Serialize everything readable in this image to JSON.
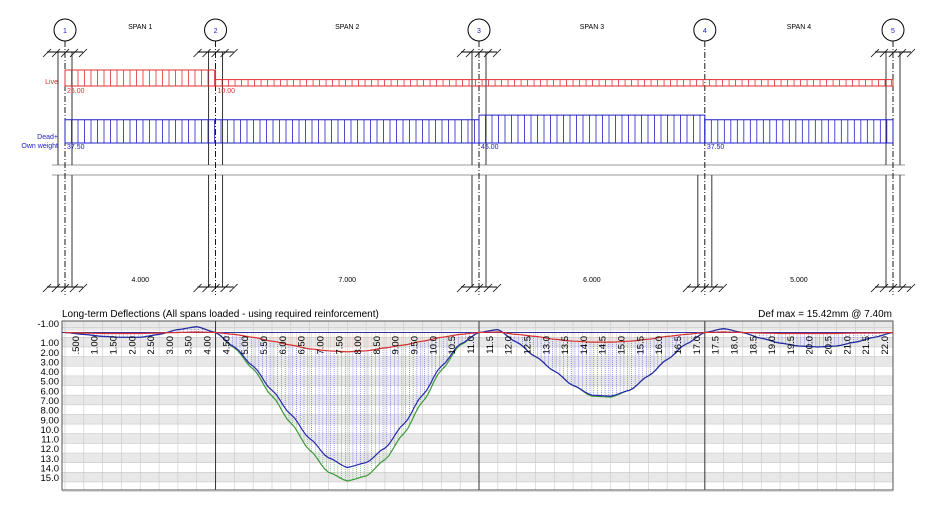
{
  "beam": {
    "supports": [
      {
        "label": "1",
        "x_m": 0,
        "upper_column": true
      },
      {
        "label": "2",
        "x_m": 4,
        "upper_column": true
      },
      {
        "label": "3",
        "x_m": 11,
        "upper_column": true
      },
      {
        "label": "4",
        "x_m": 17,
        "upper_column": false
      },
      {
        "label": "5",
        "x_m": 22,
        "upper_column": true
      }
    ],
    "spans": [
      {
        "label": "SPAN 1",
        "length": "4.000"
      },
      {
        "label": "SPAN 2",
        "length": "7.000"
      },
      {
        "label": "SPAN 3",
        "length": "6.000"
      },
      {
        "label": "SPAN 4",
        "length": "5.000"
      }
    ],
    "live_load": {
      "label": "Live",
      "color": "#e03030",
      "segments": [
        {
          "from_m": 0,
          "to_m": 4,
          "value": 25.0,
          "text": "25.00"
        },
        {
          "from_m": 4,
          "to_m": 22,
          "value": 10.0,
          "text": "10.00"
        }
      ]
    },
    "dead_load": {
      "label_line1": "Dead+",
      "label_line2": "Own weight",
      "color": "#2020c8",
      "segments": [
        {
          "from_m": 0,
          "to_m": 11,
          "value": 37.5,
          "text": "37.50"
        },
        {
          "from_m": 11,
          "to_m": 17,
          "value": 45.0,
          "text": "45.00"
        },
        {
          "from_m": 17,
          "to_m": 22,
          "value": 37.5,
          "text": "37.50"
        }
      ]
    }
  },
  "chart_data": {
    "type": "line",
    "title": "Long-term Deflections  (All spans loaded - using required reinforcement)",
    "annotation": "Def max = 15.42mm @ 7.40m",
    "xlim": [
      0,
      22
    ],
    "ylim": [
      -1,
      16
    ],
    "y_inverted": true,
    "grid": true,
    "span_boundaries": [
      4,
      11,
      17
    ],
    "x": [
      0,
      0.5,
      1,
      1.5,
      2,
      2.5,
      3,
      3.5,
      4,
      4.5,
      5,
      5.5,
      6,
      6.5,
      7,
      7.5,
      8,
      8.5,
      9,
      9.5,
      10,
      10.5,
      11,
      11.5,
      12,
      12.5,
      13,
      13.5,
      14,
      14.5,
      15,
      15.5,
      16,
      16.5,
      17,
      17.5,
      18,
      18.5,
      19,
      19.5,
      20,
      20.5,
      21,
      21.5,
      22
    ],
    "x_tick_labels": [
      ".500",
      "1.00",
      "1.50",
      "2.00",
      "2.50",
      "3.00",
      "3.50",
      "4.00",
      "4.50",
      "5.00",
      "5.50",
      "6.00",
      "6.50",
      "7.00",
      "7.50",
      "8.00",
      "8.50",
      "9.00",
      "9.50",
      "10.0",
      "10.5",
      "11.0",
      "11.5",
      "12.0",
      "12.5",
      "13.0",
      "13.5",
      "14.0",
      "14.5",
      "15.0",
      "15.5",
      "16.0",
      "16.5",
      "17.0",
      "17.5",
      "18.0",
      "18.5",
      "19.0",
      "19.5",
      "20.0",
      "20.5",
      "21.0",
      "21.5",
      "22.0"
    ],
    "y_ticks": [
      -1,
      1,
      2,
      3,
      4,
      5,
      6,
      7,
      8,
      9,
      10,
      11,
      12,
      13,
      14,
      15
    ],
    "y_tick_labels": [
      "-1.00",
      "1.00",
      "2.00",
      "3.00",
      "4.00",
      "5.00",
      "6.00",
      "7.00",
      "8.00",
      "9.00",
      "10.0",
      "11.0",
      "12.0",
      "13.0",
      "14.0",
      "15.0"
    ],
    "series": [
      {
        "color": "#d83030",
        "hatch": "#f0a070",
        "values": [
          0,
          0.05,
          0.1,
          0.1,
          0.1,
          0.05,
          0,
          -0.05,
          0,
          0.2,
          0.5,
          0.9,
          1.3,
          1.7,
          1.9,
          2.0,
          1.9,
          1.6,
          1.3,
          0.9,
          0.5,
          0.2,
          0,
          -0.05,
          0.2,
          0.4,
          0.7,
          0.9,
          1.0,
          1.0,
          0.9,
          0.7,
          0.4,
          0.2,
          0,
          -0.05,
          0,
          0.05,
          0.1,
          0.1,
          0.1,
          0.1,
          0.05,
          0.05,
          0
        ]
      },
      {
        "color": "#2828b0",
        "hatch": "#5050e0",
        "values": [
          0,
          0.2,
          0.4,
          0.5,
          0.5,
          0.2,
          -0.3,
          -0.6,
          0,
          1.5,
          3.5,
          6.0,
          8.5,
          11.0,
          13.0,
          14.0,
          13.5,
          12.0,
          9.5,
          6.5,
          3.5,
          1.2,
          0,
          -0.3,
          1.0,
          2.5,
          4.0,
          5.5,
          6.5,
          6.6,
          6.0,
          4.5,
          2.8,
          1.2,
          0,
          -0.4,
          0,
          0.6,
          1.1,
          1.4,
          1.5,
          1.4,
          1.0,
          0.5,
          0
        ]
      },
      {
        "color": "#3a9a3a",
        "hatch": "#50a050",
        "values": [
          0,
          0.2,
          0.4,
          0.5,
          0.5,
          0.2,
          -0.3,
          -0.6,
          0,
          1.6,
          3.8,
          6.6,
          9.4,
          12.2,
          14.5,
          15.4,
          14.9,
          13.2,
          10.5,
          7.2,
          3.9,
          1.3,
          0,
          -0.3,
          1.0,
          2.5,
          4.0,
          5.5,
          6.6,
          6.7,
          6.0,
          4.5,
          2.8,
          1.2,
          0,
          -0.4,
          0,
          0.6,
          1.1,
          1.4,
          1.5,
          1.4,
          1.0,
          0.5,
          0
        ]
      }
    ]
  }
}
